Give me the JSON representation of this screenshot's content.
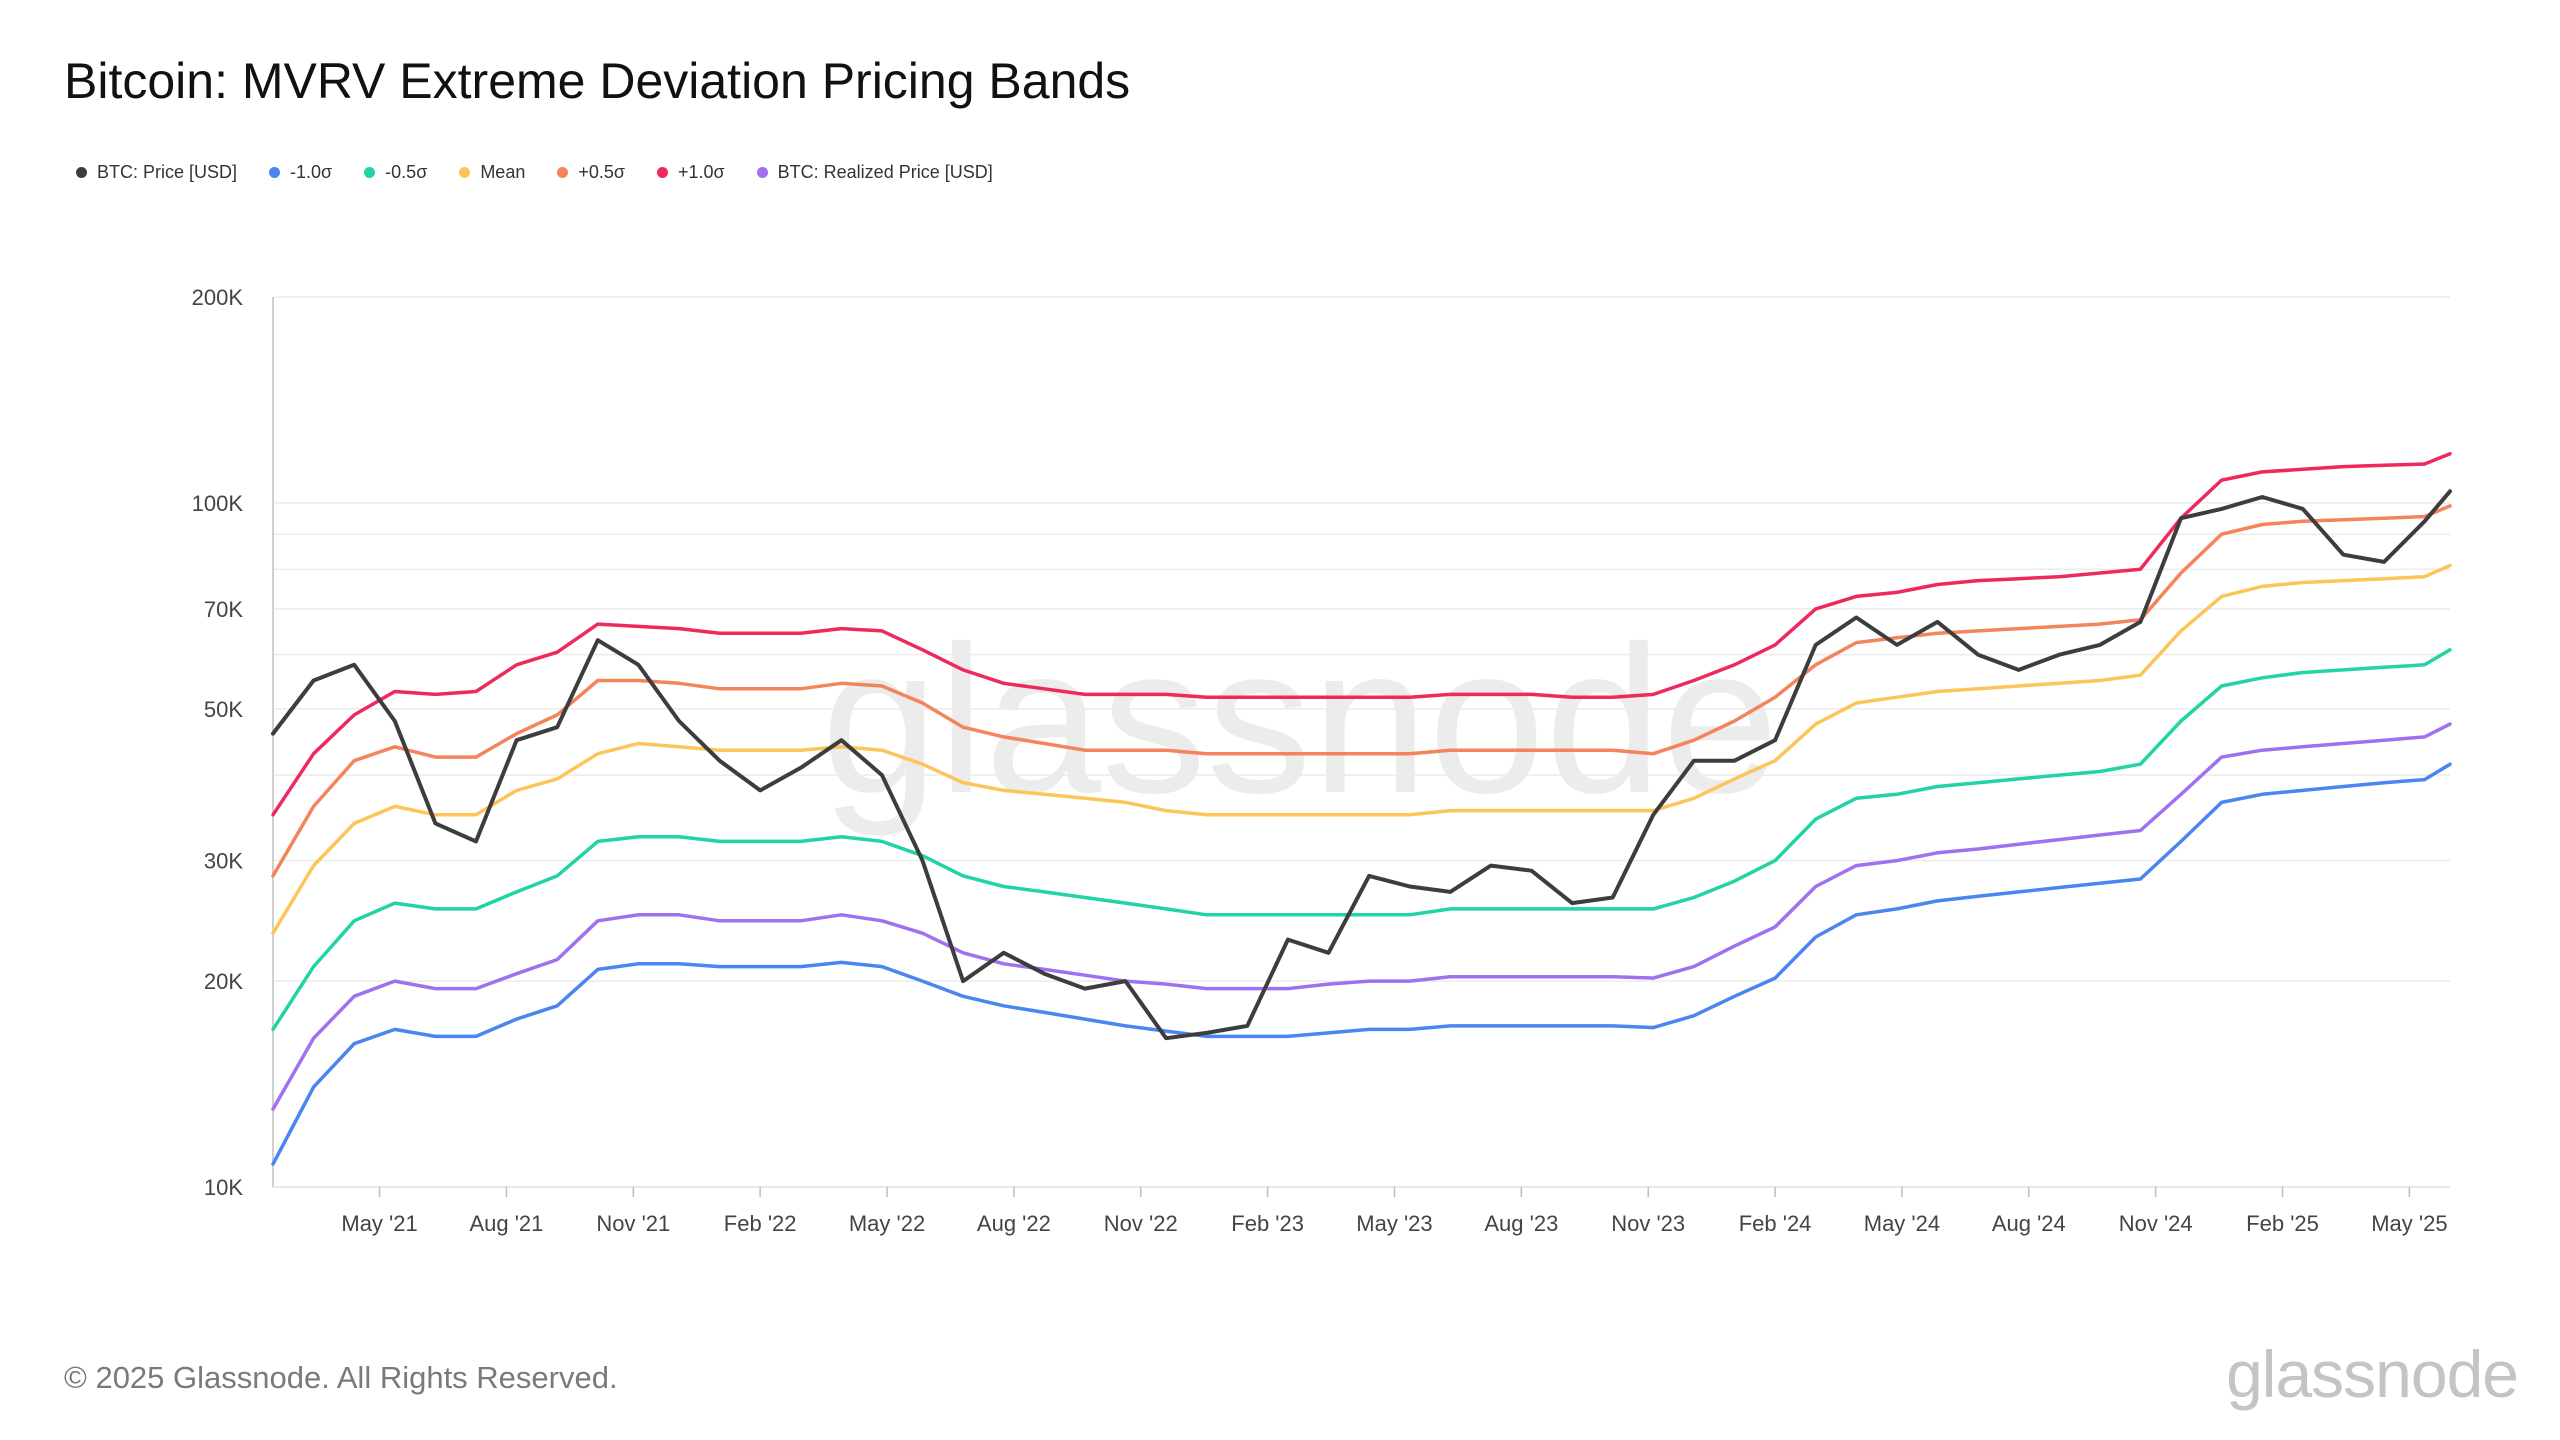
{
  "title": "Bitcoin: MVRV Extreme Deviation Pricing Bands",
  "legend": [
    {
      "label": "BTC: Price [USD]",
      "color": "#3d3d3d"
    },
    {
      "label": "-1.0σ",
      "color": "#4a85f0"
    },
    {
      "label": "-0.5σ",
      "color": "#22d3a6"
    },
    {
      "label": "Mean",
      "color": "#fcc55a"
    },
    {
      "label": "+0.5σ",
      "color": "#f4845c"
    },
    {
      "label": "+1.0σ",
      "color": "#ee2a5c"
    },
    {
      "label": "BTC: Realized Price [USD]",
      "color": "#a070f0"
    }
  ],
  "footer": {
    "copyright": "© 2025 Glassnode. All Rights Reserved.",
    "brand": "glassnode"
  },
  "watermark": "glassnode",
  "chart_data": {
    "type": "line",
    "title": "Bitcoin: MVRV Extreme Deviation Pricing Bands",
    "y_scale": "log",
    "ylim": [
      10000,
      200000
    ],
    "xlim": [
      2021.12,
      2025.41
    ],
    "y_ticks": [
      {
        "value": 10000,
        "label": "10K"
      },
      {
        "value": 20000,
        "label": "20K"
      },
      {
        "value": 30000,
        "label": "30K"
      },
      {
        "value": 50000,
        "label": "50K"
      },
      {
        "value": 70000,
        "label": "70K"
      },
      {
        "value": 100000,
        "label": "100K"
      },
      {
        "value": 200000,
        "label": "200K"
      }
    ],
    "x_ticks": [
      {
        "value": 2021.33,
        "label": "May '21"
      },
      {
        "value": 2021.58,
        "label": "Aug '21"
      },
      {
        "value": 2021.83,
        "label": "Nov '21"
      },
      {
        "value": 2022.08,
        "label": "Feb '22"
      },
      {
        "value": 2022.33,
        "label": "May '22"
      },
      {
        "value": 2022.58,
        "label": "Aug '22"
      },
      {
        "value": 2022.83,
        "label": "Nov '22"
      },
      {
        "value": 2023.08,
        "label": "Feb '23"
      },
      {
        "value": 2023.33,
        "label": "May '23"
      },
      {
        "value": 2023.58,
        "label": "Aug '23"
      },
      {
        "value": 2023.83,
        "label": "Nov '23"
      },
      {
        "value": 2024.08,
        "label": "Feb '24"
      },
      {
        "value": 2024.33,
        "label": "May '24"
      },
      {
        "value": 2024.58,
        "label": "Aug '24"
      },
      {
        "value": 2024.83,
        "label": "Nov '24"
      },
      {
        "value": 2025.08,
        "label": "Feb '25"
      },
      {
        "value": 2025.33,
        "label": "May '25"
      }
    ],
    "x": [
      2021.12,
      2021.2,
      2021.28,
      2021.36,
      2021.44,
      2021.52,
      2021.6,
      2021.68,
      2021.76,
      2021.84,
      2021.92,
      2022.0,
      2022.08,
      2022.16,
      2022.24,
      2022.32,
      2022.4,
      2022.48,
      2022.56,
      2022.64,
      2022.72,
      2022.8,
      2022.88,
      2022.96,
      2023.04,
      2023.12,
      2023.2,
      2023.28,
      2023.36,
      2023.44,
      2023.52,
      2023.6,
      2023.68,
      2023.76,
      2023.84,
      2023.92,
      2024.0,
      2024.08,
      2024.16,
      2024.24,
      2024.32,
      2024.4,
      2024.48,
      2024.56,
      2024.64,
      2024.72,
      2024.8,
      2024.88,
      2024.96,
      2025.04,
      2025.12,
      2025.2,
      2025.28,
      2025.36,
      2025.41
    ],
    "series": [
      {
        "name": "+1.0σ",
        "color": "#ee2a5c",
        "width": 3.5,
        "values": [
          35000,
          43000,
          49000,
          53000,
          52500,
          53000,
          58000,
          60500,
          66500,
          66000,
          65500,
          64500,
          64500,
          64500,
          65500,
          65000,
          61000,
          57000,
          54500,
          53500,
          52500,
          52500,
          52500,
          52000,
          52000,
          52000,
          52000,
          52000,
          52000,
          52500,
          52500,
          52500,
          52000,
          52000,
          52500,
          55000,
          58000,
          62000,
          70000,
          73000,
          74000,
          76000,
          77000,
          77500,
          78000,
          79000,
          80000,
          95000,
          108000,
          111000,
          112000,
          113000,
          113500,
          114000,
          118000
        ]
      },
      {
        "name": "+0.5σ",
        "color": "#f4845c",
        "width": 3.5,
        "values": [
          28500,
          36000,
          42000,
          44000,
          42500,
          42500,
          46000,
          49000,
          55000,
          55000,
          54500,
          53500,
          53500,
          53500,
          54500,
          54000,
          51000,
          47000,
          45500,
          44500,
          43500,
          43500,
          43500,
          43000,
          43000,
          43000,
          43000,
          43000,
          43000,
          43500,
          43500,
          43500,
          43500,
          43500,
          43000,
          45000,
          48000,
          52000,
          58000,
          62500,
          63500,
          64500,
          65000,
          65500,
          66000,
          66500,
          67500,
          79000,
          90000,
          93000,
          94000,
          94500,
          95000,
          95500,
          99000
        ]
      },
      {
        "name": "Mean",
        "color": "#fcc55a",
        "width": 3.5,
        "values": [
          23500,
          29500,
          34000,
          36000,
          35000,
          35000,
          38000,
          39500,
          43000,
          44500,
          44000,
          43500,
          43500,
          43500,
          44000,
          43500,
          41500,
          39000,
          38000,
          37500,
          37000,
          36500,
          35500,
          35000,
          35000,
          35000,
          35000,
          35000,
          35000,
          35500,
          35500,
          35500,
          35500,
          35500,
          35500,
          37000,
          39500,
          42000,
          47500,
          51000,
          52000,
          53000,
          53500,
          54000,
          54500,
          55000,
          56000,
          65000,
          73000,
          75500,
          76500,
          77000,
          77500,
          78000,
          81000
        ]
      },
      {
        "name": "-0.5σ",
        "color": "#22d3a6",
        "width": 3.5,
        "values": [
          17000,
          21000,
          24500,
          26000,
          25500,
          25500,
          27000,
          28500,
          32000,
          32500,
          32500,
          32000,
          32000,
          32000,
          32500,
          32000,
          30500,
          28500,
          27500,
          27000,
          26500,
          26000,
          25500,
          25000,
          25000,
          25000,
          25000,
          25000,
          25000,
          25500,
          25500,
          25500,
          25500,
          25500,
          25500,
          26500,
          28000,
          30000,
          34500,
          37000,
          37500,
          38500,
          39000,
          39500,
          40000,
          40500,
          41500,
          48000,
          54000,
          55500,
          56500,
          57000,
          57500,
          58000,
          61000
        ]
      },
      {
        "name": "BTC: Realized Price [USD]",
        "color": "#a070f0",
        "width": 3.5,
        "values": [
          13000,
          16500,
          19000,
          20000,
          19500,
          19500,
          20500,
          21500,
          24500,
          25000,
          25000,
          24500,
          24500,
          24500,
          25000,
          24500,
          23500,
          22000,
          21200,
          20800,
          20400,
          20000,
          19800,
          19500,
          19500,
          19500,
          19800,
          20000,
          20000,
          20300,
          20300,
          20300,
          20300,
          20300,
          20200,
          21000,
          22500,
          24000,
          27500,
          29500,
          30000,
          30800,
          31200,
          31700,
          32200,
          32700,
          33200,
          37500,
          42500,
          43500,
          44000,
          44500,
          45000,
          45500,
          47500
        ]
      },
      {
        "name": "-1.0σ",
        "color": "#4a85f0",
        "width": 3.5,
        "values": [
          10800,
          14000,
          16200,
          17000,
          16600,
          16600,
          17600,
          18400,
          20800,
          21200,
          21200,
          21000,
          21000,
          21000,
          21300,
          21000,
          20000,
          19000,
          18400,
          18000,
          17600,
          17200,
          16900,
          16600,
          16600,
          16600,
          16800,
          17000,
          17000,
          17200,
          17200,
          17200,
          17200,
          17200,
          17100,
          17800,
          19000,
          20200,
          23200,
          25000,
          25500,
          26200,
          26600,
          27000,
          27400,
          27800,
          28200,
          32000,
          36500,
          37500,
          38000,
          38500,
          39000,
          39400,
          41500
        ]
      },
      {
        "name": "BTC: Price [USD]",
        "color": "#3d3d3d",
        "width": 4,
        "values": [
          46000,
          55000,
          58000,
          48000,
          34000,
          32000,
          45000,
          47000,
          63000,
          58000,
          48000,
          42000,
          38000,
          41000,
          45000,
          40000,
          30000,
          20000,
          22000,
          20500,
          19500,
          20000,
          16500,
          16800,
          17200,
          23000,
          22000,
          28500,
          27500,
          27000,
          29500,
          29000,
          26000,
          26500,
          35000,
          42000,
          42000,
          45000,
          62000,
          68000,
          62000,
          67000,
          60000,
          57000,
          60000,
          62000,
          67000,
          95000,
          98000,
          102000,
          98000,
          84000,
          82000,
          94000,
          104000
        ]
      }
    ]
  }
}
